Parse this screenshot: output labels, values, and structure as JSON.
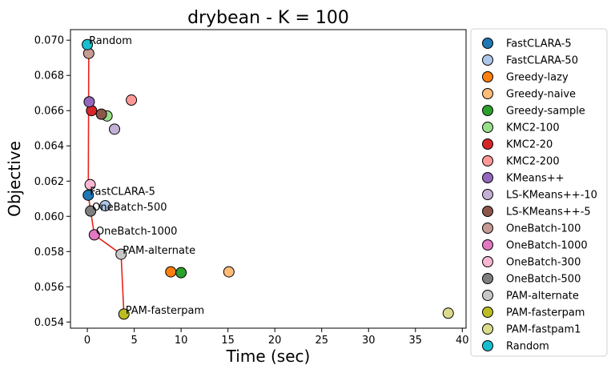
{
  "chart_data": {
    "type": "scatter",
    "title": "drybean - K = 100",
    "xlabel": "Time (sec)",
    "ylabel": "Objective",
    "xlim": [
      -1.8,
      40.4
    ],
    "ylim": [
      0.05365,
      0.0706
    ],
    "xticks": [
      0,
      5,
      10,
      15,
      20,
      25,
      30,
      35,
      40
    ],
    "yticks": [
      0.054,
      0.056,
      0.058,
      0.06,
      0.062,
      0.064,
      0.066,
      0.068,
      0.07
    ],
    "yticks_labels": [
      "0.054",
      "0.056",
      "0.058",
      "0.060",
      "0.062",
      "0.064",
      "0.066",
      "0.068",
      "0.070"
    ],
    "grid": false,
    "legend_position": "outside-right",
    "series": [
      {
        "name": "FastCLARA-5",
        "color": "#1f77b4",
        "x": 0.1,
        "y": 0.0612
      },
      {
        "name": "FastCLARA-50",
        "color": "#aec7e8",
        "x": 1.9,
        "y": 0.0606
      },
      {
        "name": "Greedy-lazy",
        "color": "#ff7f0e",
        "x": 8.9,
        "y": 0.05685
      },
      {
        "name": "Greedy-naive",
        "color": "#ffbb78",
        "x": 15.1,
        "y": 0.05685
      },
      {
        "name": "Greedy-sample",
        "color": "#2ca02c",
        "x": 10.0,
        "y": 0.0568
      },
      {
        "name": "KMC2-100",
        "color": "#98df8a",
        "x": 2.1,
        "y": 0.0657
      },
      {
        "name": "KMC2-20",
        "color": "#d62728",
        "x": 0.45,
        "y": 0.066
      },
      {
        "name": "KMC2-200",
        "color": "#ff9896",
        "x": 4.7,
        "y": 0.0666
      },
      {
        "name": "KMeans++",
        "color": "#9467bd",
        "x": 0.2,
        "y": 0.0665
      },
      {
        "name": "LS-KMeans++-10",
        "color": "#c5b0d5",
        "x": 2.9,
        "y": 0.06495
      },
      {
        "name": "LS-KMeans++-5",
        "color": "#8c564b",
        "x": 1.5,
        "y": 0.0658
      },
      {
        "name": "OneBatch-100",
        "color": "#c49c94",
        "x": 0.15,
        "y": 0.06925
      },
      {
        "name": "OneBatch-1000",
        "color": "#e377c2",
        "x": 0.75,
        "y": 0.05895
      },
      {
        "name": "OneBatch-300",
        "color": "#f7b6d2",
        "x": 0.3,
        "y": 0.0618
      },
      {
        "name": "OneBatch-500",
        "color": "#7f7f7f",
        "x": 0.35,
        "y": 0.0603
      },
      {
        "name": "PAM-alternate",
        "color": "#c7c7c7",
        "x": 3.6,
        "y": 0.05785
      },
      {
        "name": "PAM-fasterpam",
        "color": "#bcbd22",
        "x": 3.9,
        "y": 0.05445
      },
      {
        "name": "PAM-fastpam1",
        "color": "#dbdb8d",
        "x": 38.5,
        "y": 0.0545
      },
      {
        "name": "Random",
        "color": "#17becf",
        "x": 0.0,
        "y": 0.06975
      }
    ],
    "annotations": [
      {
        "text": "Random",
        "x": 0.0,
        "y": 0.06975
      },
      {
        "text": "FastCLARA-5",
        "x": 0.1,
        "y": 0.0612
      },
      {
        "text": "OneBatch-500",
        "x": 0.35,
        "y": 0.0603
      },
      {
        "text": "OneBatch-1000",
        "x": 0.75,
        "y": 0.05895
      },
      {
        "text": "PAM-alternate",
        "x": 3.6,
        "y": 0.05785
      },
      {
        "text": "PAM-fasterpam",
        "x": 3.9,
        "y": 0.05445
      }
    ],
    "pareto_line": {
      "color": "#e8231a",
      "points": [
        [
          0.0,
          0.06975
        ],
        [
          0.15,
          0.06925
        ],
        [
          0.1,
          0.0612
        ],
        [
          0.35,
          0.0603
        ],
        [
          0.75,
          0.05895
        ],
        [
          3.6,
          0.05785
        ],
        [
          3.9,
          0.05445
        ]
      ]
    }
  }
}
